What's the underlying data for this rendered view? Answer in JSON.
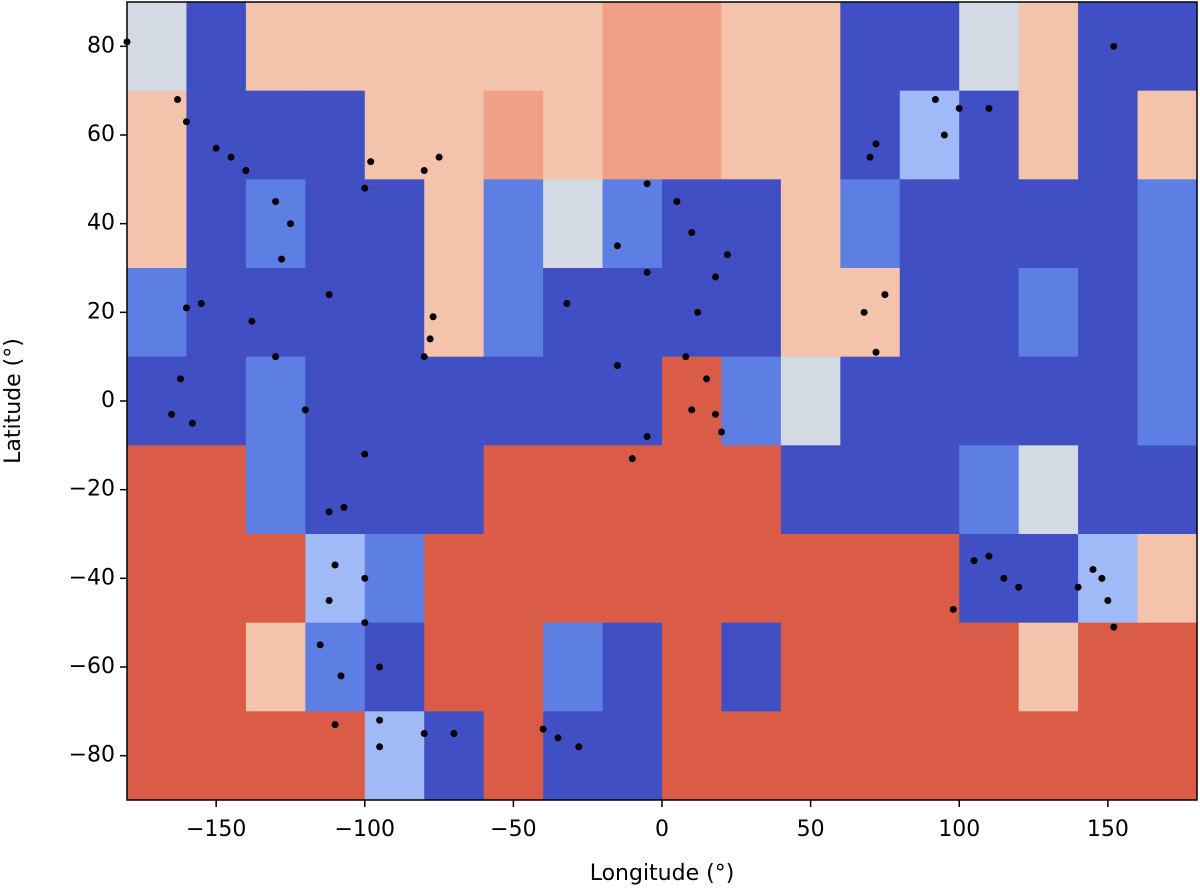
{
  "chart_data": {
    "type": "scatter",
    "x_label": "Longitude (°)",
    "y_label": "Latitude (°)",
    "xlim": [
      -180,
      180
    ],
    "ylim": [
      -90,
      90
    ],
    "xticks": [
      {
        "value": -150,
        "label": "−150"
      },
      {
        "value": -100,
        "label": "−100"
      },
      {
        "value": -50,
        "label": "−50"
      },
      0,
      50,
      100,
      150
    ],
    "yticks": [
      {
        "value": -80,
        "label": "−80"
      },
      {
        "value": -60,
        "label": "−60"
      },
      {
        "value": -40,
        "label": "−40"
      },
      {
        "value": -20,
        "label": "−20"
      },
      0,
      20,
      40,
      60,
      80
    ],
    "field_colors": [
      "#4050c4",
      "#5d7fe4",
      "#9fbaf6",
      "#d4dae4",
      "#f4c3ab",
      "#f0a185",
      "#db5c46"
    ],
    "field": [
      [
        3,
        0,
        4,
        4,
        4,
        4,
        4,
        4,
        5,
        5,
        4,
        4,
        0,
        0,
        3,
        4,
        0,
        0
      ],
      [
        4,
        0,
        0,
        0,
        4,
        4,
        5,
        4,
        5,
        5,
        4,
        4,
        0,
        2,
        0,
        4,
        0,
        4
      ],
      [
        4,
        0,
        1,
        0,
        0,
        4,
        1,
        3,
        1,
        0,
        0,
        4,
        1,
        0,
        0,
        0,
        0,
        1
      ],
      [
        1,
        0,
        0,
        0,
        0,
        4,
        1,
        0,
        0,
        0,
        0,
        4,
        4,
        0,
        0,
        1,
        0,
        1
      ],
      [
        0,
        0,
        1,
        0,
        0,
        0,
        0,
        0,
        0,
        6,
        1,
        3,
        0,
        0,
        0,
        0,
        0,
        1
      ],
      [
        6,
        6,
        1,
        0,
        0,
        0,
        6,
        6,
        6,
        6,
        6,
        0,
        0,
        0,
        1,
        3,
        0,
        0
      ],
      [
        6,
        6,
        6,
        2,
        1,
        6,
        6,
        6,
        6,
        6,
        6,
        6,
        6,
        6,
        0,
        0,
        2,
        4
      ],
      [
        6,
        6,
        4,
        1,
        0,
        6,
        6,
        1,
        0,
        6,
        0,
        6,
        6,
        6,
        6,
        4,
        6,
        6
      ],
      [
        6,
        6,
        6,
        6,
        2,
        0,
        6,
        0,
        0,
        6,
        6,
        6,
        6,
        6,
        6,
        6,
        6,
        6
      ]
    ],
    "point_color": "#000000",
    "x": [
      -180,
      -163,
      -160,
      -150,
      -145,
      -140,
      -130,
      -125,
      -128,
      -155,
      -160,
      -112,
      -138,
      -130,
      -162,
      -165,
      -158,
      -120,
      -100,
      -107,
      -112,
      -110,
      -112,
      -100,
      -115,
      -108,
      -95,
      -110,
      -95,
      -80,
      -70,
      -100,
      -98,
      -100,
      -80,
      -75,
      -77,
      -78,
      -80,
      -35,
      -28,
      -40,
      -32,
      -10,
      -5,
      -15,
      -15,
      -5,
      -5,
      5,
      10,
      18,
      22,
      12,
      8,
      15,
      10,
      18,
      20,
      70,
      72,
      75,
      68,
      72,
      92,
      95,
      100,
      110,
      152,
      110,
      105,
      115,
      120,
      98,
      140,
      148,
      150,
      152,
      145,
      -95
    ],
    "y": [
      81,
      68,
      63,
      57,
      55,
      52,
      45,
      40,
      32,
      22,
      21,
      24,
      18,
      10,
      5,
      -3,
      -5,
      -2,
      -12,
      -24,
      -25,
      -37,
      -45,
      -40,
      -55,
      -62,
      -60,
      -73,
      -72,
      -75,
      -75,
      -50,
      54,
      48,
      52,
      55,
      19,
      14,
      10,
      -76,
      -78,
      -74,
      22,
      -13,
      -8,
      8,
      35,
      29,
      49,
      45,
      38,
      28,
      33,
      20,
      10,
      5,
      -2,
      -3,
      -7,
      55,
      58,
      24,
      20,
      11,
      68,
      60,
      66,
      66,
      80,
      -35,
      -36,
      -40,
      -42,
      -47,
      -42,
      -40,
      -45,
      -51,
      -38,
      -78
    ]
  }
}
